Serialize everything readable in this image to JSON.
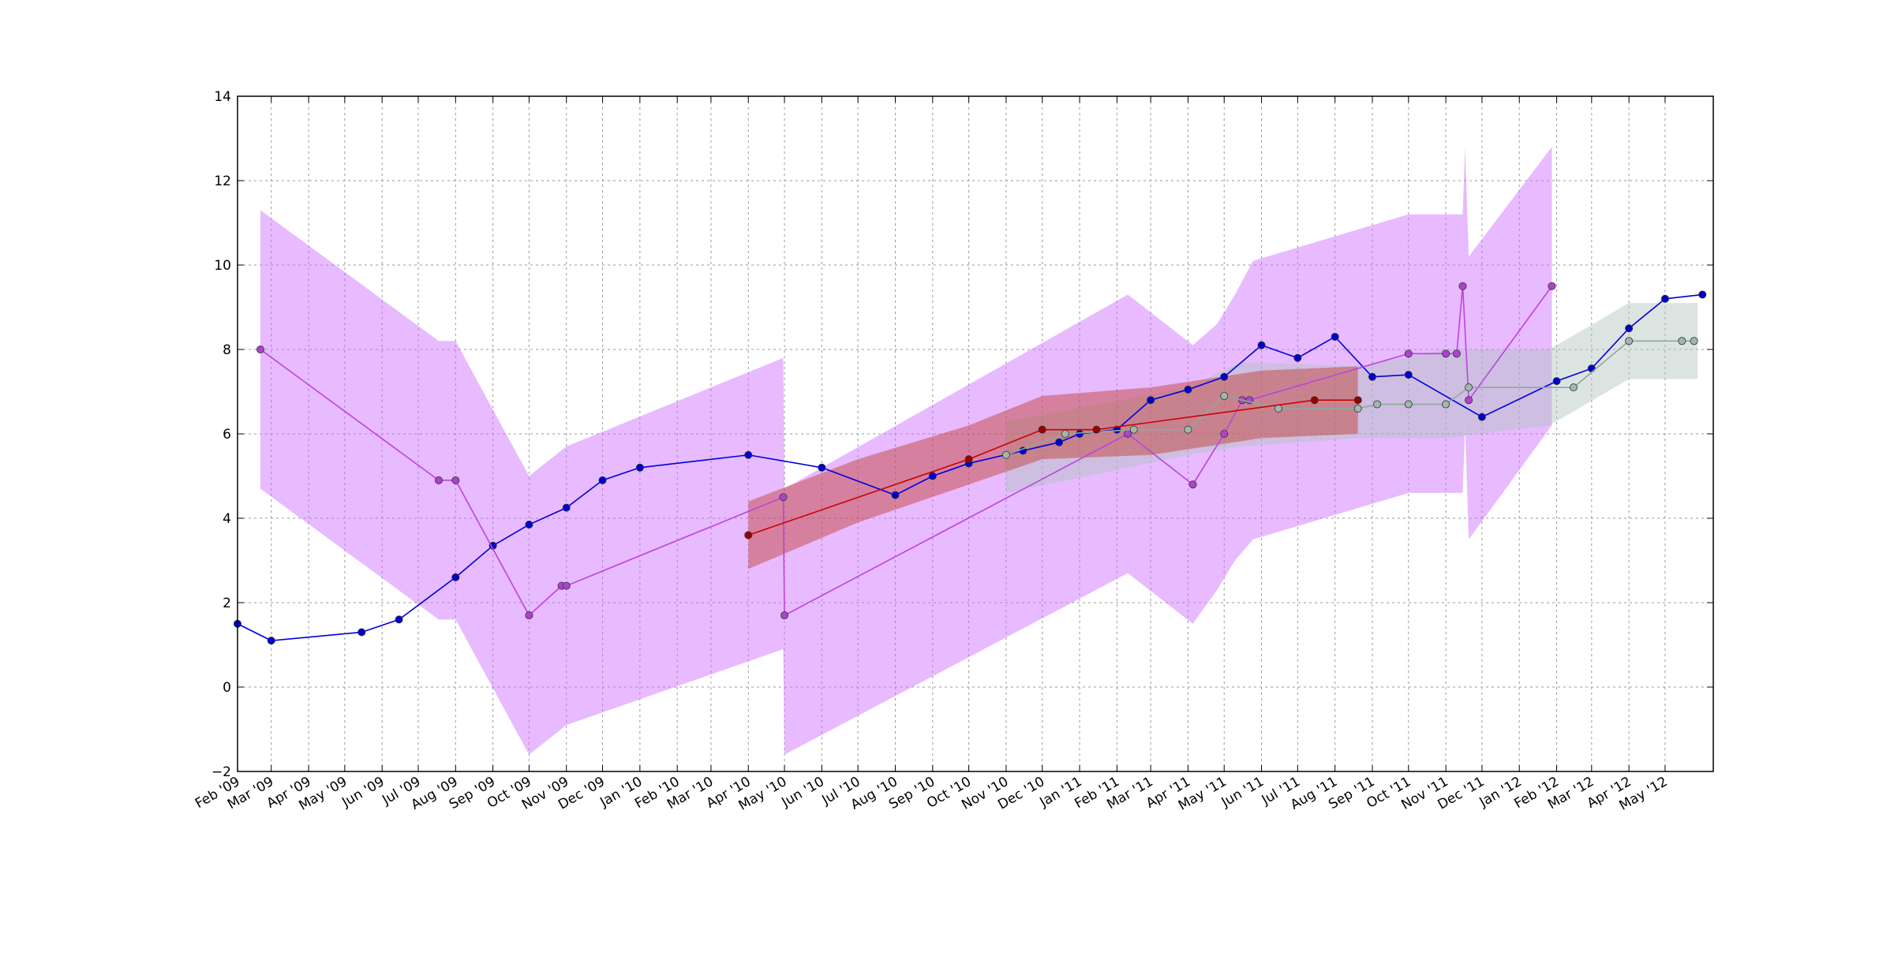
{
  "chart_data": {
    "type": "line",
    "title": "",
    "xlabel": "",
    "ylabel": "",
    "grid": true,
    "x_axis": {
      "type": "date",
      "range": [
        "2009-02-01",
        "2012-06-10"
      ],
      "ticks": [
        {
          "date": "2009-02-01",
          "label": "Feb '09"
        },
        {
          "date": "2009-03-01",
          "label": "Mar '09"
        },
        {
          "date": "2009-04-01",
          "label": "Apr '09"
        },
        {
          "date": "2009-05-01",
          "label": "May '09"
        },
        {
          "date": "2009-06-01",
          "label": "Jun '09"
        },
        {
          "date": "2009-07-01",
          "label": "Jul '09"
        },
        {
          "date": "2009-08-01",
          "label": "Aug '09"
        },
        {
          "date": "2009-09-01",
          "label": "Sep '09"
        },
        {
          "date": "2009-10-01",
          "label": "Oct '09"
        },
        {
          "date": "2009-11-01",
          "label": "Nov '09"
        },
        {
          "date": "2009-12-01",
          "label": "Dec '09"
        },
        {
          "date": "2010-01-01",
          "label": "Jan '10"
        },
        {
          "date": "2010-02-01",
          "label": "Feb '10"
        },
        {
          "date": "2010-03-01",
          "label": "Mar '10"
        },
        {
          "date": "2010-04-01",
          "label": "Apr '10"
        },
        {
          "date": "2010-05-01",
          "label": "May '10"
        },
        {
          "date": "2010-06-01",
          "label": "Jun '10"
        },
        {
          "date": "2010-07-01",
          "label": "Jul '10"
        },
        {
          "date": "2010-08-01",
          "label": "Aug '10"
        },
        {
          "date": "2010-09-01",
          "label": "Sep '10"
        },
        {
          "date": "2010-10-01",
          "label": "Oct '10"
        },
        {
          "date": "2010-11-01",
          "label": "Nov '10"
        },
        {
          "date": "2010-12-01",
          "label": "Dec '10"
        },
        {
          "date": "2011-01-01",
          "label": "Jan '11"
        },
        {
          "date": "2011-02-01",
          "label": "Feb '11"
        },
        {
          "date": "2011-03-01",
          "label": "Mar '11"
        },
        {
          "date": "2011-04-01",
          "label": "Apr '11"
        },
        {
          "date": "2011-05-01",
          "label": "May '11"
        },
        {
          "date": "2011-06-01",
          "label": "Jun '11"
        },
        {
          "date": "2011-07-01",
          "label": "Jul '11"
        },
        {
          "date": "2011-08-01",
          "label": "Aug '11"
        },
        {
          "date": "2011-09-01",
          "label": "Sep '11"
        },
        {
          "date": "2011-10-01",
          "label": "Oct '11"
        },
        {
          "date": "2011-11-01",
          "label": "Nov '11"
        },
        {
          "date": "2011-12-01",
          "label": "Dec '11"
        },
        {
          "date": "2012-01-01",
          "label": "Jan '12"
        },
        {
          "date": "2012-02-01",
          "label": "Feb '12"
        },
        {
          "date": "2012-03-01",
          "label": "Mar '12"
        },
        {
          "date": "2012-04-01",
          "label": "Apr '12"
        },
        {
          "date": "2012-05-01",
          "label": "May '12"
        }
      ]
    },
    "y_axis": {
      "range": [
        -2,
        14
      ],
      "ticks": [
        {
          "value": -2,
          "label": "−2"
        },
        {
          "value": 0,
          "label": "0"
        },
        {
          "value": 2,
          "label": "2"
        },
        {
          "value": 4,
          "label": "4"
        },
        {
          "value": 6,
          "label": "6"
        },
        {
          "value": 8,
          "label": "8"
        },
        {
          "value": 10,
          "label": "10"
        },
        {
          "value": 12,
          "label": "12"
        },
        {
          "value": 14,
          "label": "14"
        }
      ]
    },
    "bands": [
      {
        "color": "#cc66ff",
        "opacity": 0.45,
        "points": [
          {
            "x": "2009-02-20",
            "lo": 4.7,
            "hi": 11.3
          },
          {
            "x": "2009-07-18",
            "lo": 1.6,
            "hi": 8.2
          },
          {
            "x": "2009-08-01",
            "lo": 1.6,
            "hi": 8.2
          },
          {
            "x": "2009-10-01",
            "lo": -1.6,
            "hi": 5.0
          },
          {
            "x": "2009-11-01",
            "lo": -0.9,
            "hi": 5.7
          },
          {
            "x": "2010-04-30",
            "lo": 0.9,
            "hi": 7.8
          },
          {
            "x": "2010-05-01",
            "lo": -1.6,
            "hi": 4.7
          },
          {
            "x": "2011-02-10",
            "lo": 2.7,
            "hi": 9.3
          },
          {
            "x": "2011-04-05",
            "lo": 1.5,
            "hi": 8.1
          },
          {
            "x": "2011-04-25",
            "lo": 2.3,
            "hi": 8.6
          },
          {
            "x": "2011-05-10",
            "lo": 3.0,
            "hi": 9.3
          },
          {
            "x": "2011-05-25",
            "lo": 3.5,
            "hi": 10.1
          },
          {
            "x": "2011-10-01",
            "lo": 4.6,
            "hi": 11.2
          },
          {
            "x": "2011-11-15",
            "lo": 4.6,
            "hi": 11.2
          },
          {
            "x": "2011-11-17",
            "lo": 6.2,
            "hi": 12.8
          },
          {
            "x": "2011-11-20",
            "lo": 3.5,
            "hi": 10.2
          },
          {
            "x": "2012-01-28",
            "lo": 6.2,
            "hi": 12.8
          }
        ]
      },
      {
        "color": "#b0c4bc",
        "opacity": 0.45,
        "points": [
          {
            "x": "2010-11-01",
            "lo": 4.6,
            "hi": 6.3
          },
          {
            "x": "2011-04-01",
            "lo": 5.5,
            "hi": 7.1
          },
          {
            "x": "2011-05-15",
            "lo": 5.7,
            "hi": 7.7
          },
          {
            "x": "2011-08-20",
            "lo": 5.9,
            "hi": 7.6
          },
          {
            "x": "2011-11-01",
            "lo": 5.9,
            "hi": 8.0
          },
          {
            "x": "2012-01-25",
            "lo": 6.2,
            "hi": 8.0
          },
          {
            "x": "2012-02-01",
            "lo": 6.3,
            "hi": 8.1
          },
          {
            "x": "2012-04-01",
            "lo": 7.3,
            "hi": 9.1
          },
          {
            "x": "2012-05-28",
            "lo": 7.3,
            "hi": 9.1
          }
        ]
      },
      {
        "color": "#c0392b",
        "opacity": 0.45,
        "points": [
          {
            "x": "2010-04-01",
            "lo": 2.8,
            "hi": 4.4
          },
          {
            "x": "2010-07-01",
            "lo": 3.9,
            "hi": 5.4
          },
          {
            "x": "2010-10-01",
            "lo": 4.8,
            "hi": 6.2
          },
          {
            "x": "2010-12-01",
            "lo": 5.4,
            "hi": 6.9
          },
          {
            "x": "2011-03-01",
            "lo": 5.5,
            "hi": 7.1
          },
          {
            "x": "2011-06-01",
            "lo": 5.9,
            "hi": 7.5
          },
          {
            "x": "2011-08-20",
            "lo": 6.0,
            "hi": 7.6
          }
        ]
      }
    ],
    "series": [
      {
        "color": "#0000cc",
        "line_color": "#0000dd",
        "points": [
          {
            "x": "2009-02-01",
            "y": 1.5
          },
          {
            "x": "2009-03-01",
            "y": 1.1
          },
          {
            "x": "2009-05-15",
            "y": 1.3
          },
          {
            "x": "2009-06-15",
            "y": 1.6
          },
          {
            "x": "2009-08-01",
            "y": 2.6
          },
          {
            "x": "2009-09-01",
            "y": 3.35
          },
          {
            "x": "2009-10-01",
            "y": 3.85
          },
          {
            "x": "2009-11-01",
            "y": 4.25
          },
          {
            "x": "2009-12-01",
            "y": 4.9
          },
          {
            "x": "2010-01-01",
            "y": 5.2
          },
          {
            "x": "2010-04-01",
            "y": 5.5
          },
          {
            "x": "2010-06-01",
            "y": 5.2
          },
          {
            "x": "2010-08-01",
            "y": 4.55
          },
          {
            "x": "2010-09-01",
            "y": 5.0
          },
          {
            "x": "2010-10-01",
            "y": 5.3
          },
          {
            "x": "2010-11-15",
            "y": 5.6
          },
          {
            "x": "2010-12-15",
            "y": 5.8
          },
          {
            "x": "2011-01-01",
            "y": 6.0
          },
          {
            "x": "2011-02-01",
            "y": 6.1
          },
          {
            "x": "2011-03-01",
            "y": 6.8
          },
          {
            "x": "2011-04-01",
            "y": 7.05
          },
          {
            "x": "2011-05-01",
            "y": 7.35
          },
          {
            "x": "2011-06-01",
            "y": 8.1
          },
          {
            "x": "2011-07-01",
            "y": 7.8
          },
          {
            "x": "2011-08-01",
            "y": 8.3
          },
          {
            "x": "2011-09-01",
            "y": 7.35
          },
          {
            "x": "2011-10-01",
            "y": 7.4
          },
          {
            "x": "2011-12-01",
            "y": 6.4
          },
          {
            "x": "2012-02-01",
            "y": 7.25
          },
          {
            "x": "2012-03-01",
            "y": 7.55
          },
          {
            "x": "2012-04-01",
            "y": 8.5
          },
          {
            "x": "2012-05-01",
            "y": 9.2
          },
          {
            "x": "2012-06-01",
            "y": 9.3
          }
        ]
      },
      {
        "color": "#aa44cc",
        "line_color": "#bb44dd",
        "points": [
          {
            "x": "2009-02-20",
            "y": 8.0
          },
          {
            "x": "2009-07-18",
            "y": 4.9
          },
          {
            "x": "2009-08-01",
            "y": 4.9
          },
          {
            "x": "2009-10-01",
            "y": 1.7
          },
          {
            "x": "2009-10-28",
            "y": 2.4
          },
          {
            "x": "2009-11-01",
            "y": 2.4
          },
          {
            "x": "2010-04-30",
            "y": 4.5
          },
          {
            "x": "2010-05-01",
            "y": 1.7
          },
          {
            "x": "2011-02-10",
            "y": 6.0
          },
          {
            "x": "2011-04-05",
            "y": 4.8
          },
          {
            "x": "2011-05-01",
            "y": 6.0
          },
          {
            "x": "2011-05-16",
            "y": 6.8
          },
          {
            "x": "2011-05-22",
            "y": 6.8
          },
          {
            "x": "2011-10-01",
            "y": 7.9
          },
          {
            "x": "2011-11-01",
            "y": 7.9
          },
          {
            "x": "2011-11-10",
            "y": 7.9
          },
          {
            "x": "2011-11-15",
            "y": 9.5
          },
          {
            "x": "2011-11-20",
            "y": 6.8
          },
          {
            "x": "2012-01-28",
            "y": 9.5
          }
        ]
      },
      {
        "color": "#9fb7ac",
        "line_color": "#8fa89c",
        "points": [
          {
            "x": "2010-11-01",
            "y": 5.5
          },
          {
            "x": "2010-12-20",
            "y": 6.0
          },
          {
            "x": "2011-02-15",
            "y": 6.1
          },
          {
            "x": "2011-04-01",
            "y": 6.1
          },
          {
            "x": "2011-05-01",
            "y": 6.9
          },
          {
            "x": "2011-06-15",
            "y": 6.6
          },
          {
            "x": "2011-08-20",
            "y": 6.6
          },
          {
            "x": "2011-09-05",
            "y": 6.7
          },
          {
            "x": "2011-10-01",
            "y": 6.7
          },
          {
            "x": "2011-11-01",
            "y": 6.7
          },
          {
            "x": "2011-11-20",
            "y": 7.1
          },
          {
            "x": "2012-02-15",
            "y": 7.1
          },
          {
            "x": "2012-04-01",
            "y": 8.2
          },
          {
            "x": "2012-05-15",
            "y": 8.2
          },
          {
            "x": "2012-05-25",
            "y": 8.2
          }
        ]
      },
      {
        "color": "#990000",
        "line_color": "#cc0000",
        "points": [
          {
            "x": "2010-04-01",
            "y": 3.6
          },
          {
            "x": "2010-10-01",
            "y": 5.4
          },
          {
            "x": "2010-12-01",
            "y": 6.1
          },
          {
            "x": "2011-01-15",
            "y": 6.1
          },
          {
            "x": "2011-07-15",
            "y": 6.8
          },
          {
            "x": "2011-08-20",
            "y": 6.8
          }
        ]
      }
    ]
  }
}
